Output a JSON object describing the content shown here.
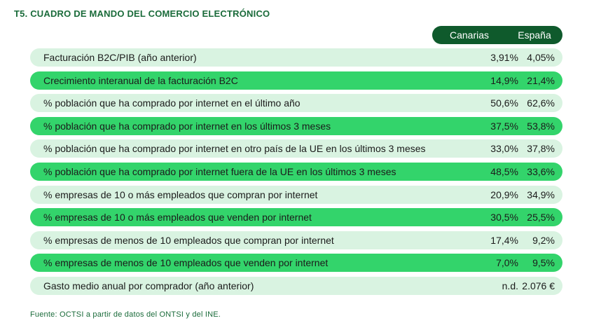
{
  "title": "T5. CUADRO DE MANDO DEL COMERCIO ELECTRÓNICO",
  "columns": [
    "Canarias",
    "España"
  ],
  "rows": [
    {
      "label": "Facturación B2C/PIB (año anterior)",
      "canarias": "3,91%",
      "espana": "4,05%"
    },
    {
      "label": "Crecimiento interanual de la facturación B2C",
      "canarias": "14,9%",
      "espana": "21,4%"
    },
    {
      "label": "% población que ha comprado por internet en el último año",
      "canarias": "50,6%",
      "espana": "62,6%"
    },
    {
      "label": "% población que ha comprado por internet en los últimos 3 meses",
      "canarias": "37,5%",
      "espana": "53,8%"
    },
    {
      "label": "% población que ha comprado por internet en otro país de la UE en los últimos 3 meses",
      "canarias": "33,0%",
      "espana": "37,8%"
    },
    {
      "label": "% población que ha comprado por internet fuera de la UE en los últimos 3 meses",
      "canarias": "48,5%",
      "espana": "33,6%"
    },
    {
      "label": "% empresas de 10 o más empleados que compran por internet",
      "canarias": "20,9%",
      "espana": "34,9%"
    },
    {
      "label": "% empresas de 10 o más empleados que venden por internet",
      "canarias": "30,5%",
      "espana": "25,5%"
    },
    {
      "label": "% empresas de menos de 10 empleados que compran por internet",
      "canarias": "17,4%",
      "espana": "9,2%"
    },
    {
      "label": "% empresas de menos de 10 empleados que venden por internet",
      "canarias": "7,0%",
      "espana": "9,5%"
    },
    {
      "label": "Gasto medio anual por comprador (año anterior)",
      "canarias": "n.d.",
      "espana": "2.076 €"
    }
  ],
  "source": "Fuente: OCTSI a partir de datos del ONTSI y del INE.",
  "colors": {
    "header": "#0f5a2c",
    "row_light": "#d9f3e1",
    "row_dark": "#33d46b",
    "title": "#1a6b3a"
  }
}
